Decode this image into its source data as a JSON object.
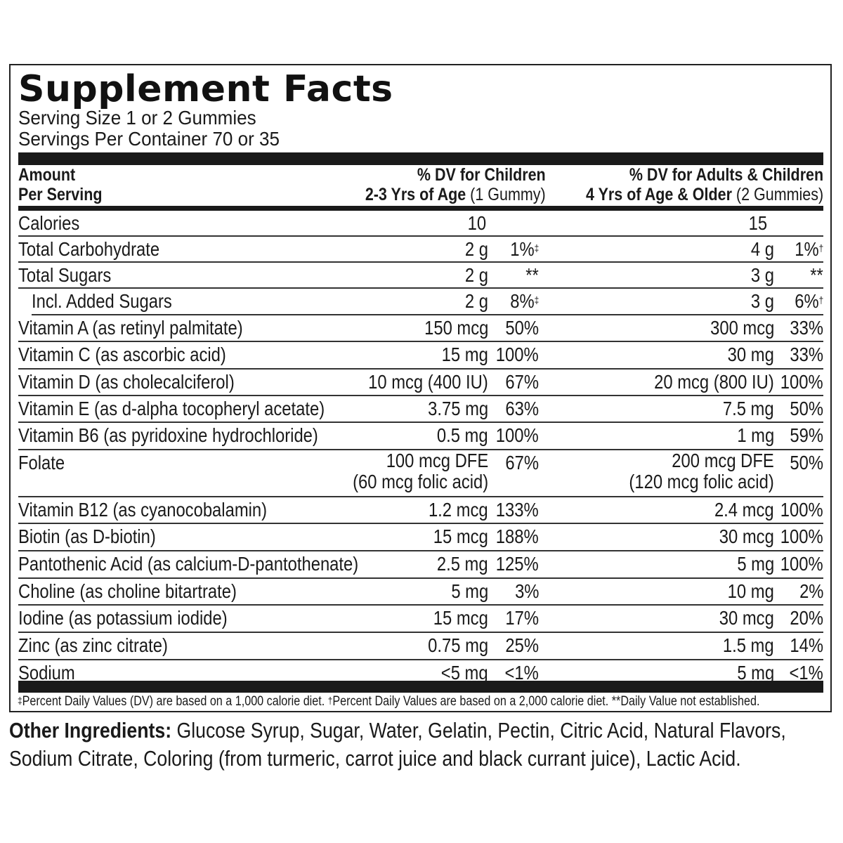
{
  "title": "Supplement Facts",
  "serving_size": "Serving Size 1 or 2 Gummies",
  "servings_per_container": "Servings Per Container 70 or 35",
  "header": {
    "amount_line1": "Amount",
    "amount_line2": "Per Serving",
    "col1_line1": "% DV for Children",
    "col1_line2_bold": "2-3 Yrs of Age",
    "col1_line2_light": " (1 Gummy)",
    "col2_line1": "% DV for Adults & Children",
    "col2_line2_bold": "4 Yrs of Age & Older",
    "col2_line2_light": " (2 Gummies)"
  },
  "rows": [
    {
      "label": "Calories",
      "indent": 0,
      "c1_amt": "10",
      "c1_dv": "",
      "c2_amt": "15",
      "c2_dv": ""
    },
    {
      "label": "Total Carbohydrate",
      "indent": 0,
      "c1_amt": "2 g",
      "c1_dv": "1%",
      "c1_mark": "‡",
      "c2_amt": "4 g",
      "c2_dv": "1%",
      "c2_mark": "†"
    },
    {
      "label": "Total Sugars",
      "indent": 1,
      "c1_amt": "2 g",
      "c1_dv": "**",
      "c2_amt": "3 g",
      "c2_dv": "**"
    },
    {
      "label": "Incl. Added Sugars",
      "indent": 2,
      "c1_amt": "2 g",
      "c1_dv": "8%",
      "c1_mark": "‡",
      "c2_amt": "3 g",
      "c2_dv": "6%",
      "c2_mark": "†"
    },
    {
      "label": "Vitamin A (as retinyl palmitate)",
      "indent": 0,
      "c1_amt": "150 mcg",
      "c1_dv": "50%",
      "c2_amt": "300 mcg",
      "c2_dv": "33%"
    },
    {
      "label": "Vitamin C (as ascorbic acid)",
      "indent": 0,
      "c1_amt": "15 mg",
      "c1_dv": "100%",
      "c2_amt": "30 mg",
      "c2_dv": "33%"
    },
    {
      "label": "Vitamin D (as cholecalciferol)",
      "indent": 0,
      "c1_amt": "10 mcg (400 IU)",
      "c1_dv": "67%",
      "c2_amt": "20 mcg (800 IU)",
      "c2_dv": "100%"
    },
    {
      "label": "Vitamin E (as d-alpha tocopheryl acetate)",
      "indent": 0,
      "c1_amt": "3.75 mg",
      "c1_dv": "63%",
      "c2_amt": "7.5 mg",
      "c2_dv": "50%"
    },
    {
      "label": "Vitamin B6 (as pyridoxine hydrochloride)",
      "indent": 0,
      "c1_amt": "0.5 mg",
      "c1_dv": "100%",
      "c2_amt": "1 mg",
      "c2_dv": "59%"
    },
    {
      "label": "Folate",
      "indent": 0,
      "c1_amt": "100 mcg DFE",
      "c1_amt2": "(60 mcg folic acid)",
      "c1_dv": "67%",
      "c2_amt": "200 mcg DFE",
      "c2_amt2": "(120 mcg folic acid)",
      "c2_dv": "50%"
    },
    {
      "label": "Vitamin B12 (as cyanocobalamin)",
      "indent": 0,
      "c1_amt": "1.2 mcg",
      "c1_dv": "133%",
      "c2_amt": "2.4 mcg",
      "c2_dv": "100%"
    },
    {
      "label": "Biotin (as D-biotin)",
      "indent": 0,
      "c1_amt": "15 mcg",
      "c1_dv": "188%",
      "c2_amt": "30 mcg",
      "c2_dv": "100%"
    },
    {
      "label": "Pantothenic Acid (as calcium-D-pantothenate)",
      "indent": 0,
      "c1_amt": "2.5 mg",
      "c1_dv": "125%",
      "c2_amt": "5 mg",
      "c2_dv": "100%"
    },
    {
      "label": "Choline (as choline bitartrate)",
      "indent": 0,
      "c1_amt": "5 mg",
      "c1_dv": "3%",
      "c2_amt": "10 mg",
      "c2_dv": "2%"
    },
    {
      "label": "Iodine (as potassium iodide)",
      "indent": 0,
      "c1_amt": "15 mcg",
      "c1_dv": "17%",
      "c2_amt": "30 mcg",
      "c2_dv": "20%"
    },
    {
      "label": "Zinc (as zinc citrate)",
      "indent": 0,
      "c1_amt": "0.75 mg",
      "c1_dv": "25%",
      "c2_amt": "1.5 mg",
      "c2_dv": "14%"
    },
    {
      "label": "Sodium",
      "indent": 0,
      "c1_amt": "<5 mg",
      "c1_dv": "<1%",
      "c2_amt": "5 mg",
      "c2_dv": "<1%"
    }
  ],
  "footnote": {
    "mark1": "‡",
    "text1": "Percent Daily Values (DV) are based on a 1,000 calorie diet. ",
    "mark2": "†",
    "text2": "Percent Daily Values are based on a 2,000 calorie diet.  **Daily Value not established."
  },
  "other_ingredients": {
    "label": "Other Ingredients:",
    "text": " Glucose Syrup, Sugar, Water, Gelatin, Pectin, Citric Acid, Natural Flavors, Sodium Citrate, Coloring (from turmeric, carrot juice and black currant juice), Lactic Acid."
  }
}
